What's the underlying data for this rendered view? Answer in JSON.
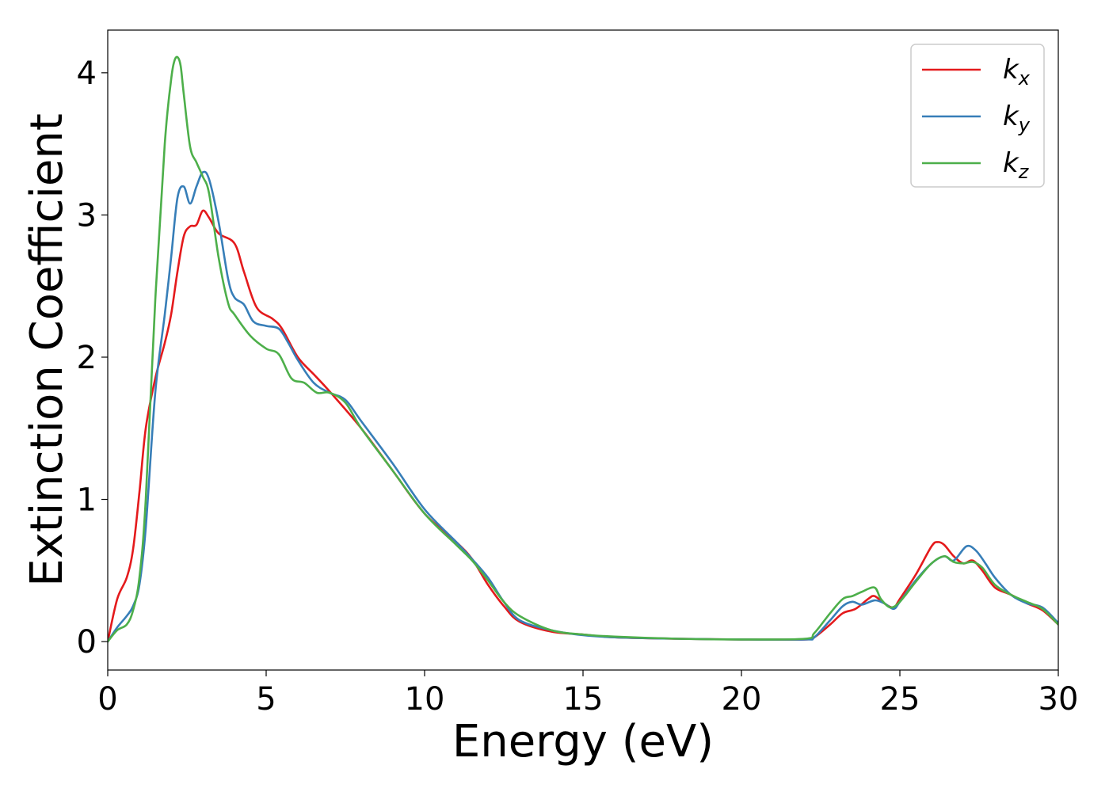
{
  "chart_data": {
    "type": "line",
    "title": "",
    "xlabel": "Energy (eV)",
    "ylabel": "Extinction Coefficient",
    "xlim": [
      0,
      30
    ],
    "ylim": [
      -0.2,
      4.3
    ],
    "xticks": [
      0,
      5,
      10,
      15,
      20,
      25,
      30
    ],
    "yticks": [
      0,
      1,
      2,
      3,
      4
    ],
    "grid": false,
    "legend_position": "top-right",
    "series": [
      {
        "name": "k_x",
        "label_main": "k",
        "label_sub": "x",
        "color": "#e41a1c",
        "x": [
          0,
          0.3,
          0.6,
          0.8,
          1.0,
          1.2,
          1.5,
          1.8,
          2.0,
          2.2,
          2.4,
          2.6,
          2.8,
          3.0,
          3.2,
          3.5,
          4.0,
          4.3,
          4.7,
          5.2,
          5.5,
          6.0,
          6.5,
          7.0,
          8.0,
          9.0,
          10.0,
          11.0,
          11.5,
          12.0,
          12.5,
          13.0,
          14.0,
          15.0,
          16.0,
          18.0,
          20.0,
          22.0,
          22.3,
          22.8,
          23.2,
          23.6,
          24.0,
          24.2,
          24.5,
          24.8,
          25.0,
          25.5,
          26.0,
          26.2,
          26.4,
          26.7,
          27.0,
          27.3,
          27.6,
          28.0,
          28.5,
          29.0,
          29.5,
          30.0
        ],
        "y": [
          0.0,
          0.3,
          0.45,
          0.65,
          1.05,
          1.5,
          1.85,
          2.1,
          2.3,
          2.6,
          2.85,
          2.92,
          2.93,
          3.03,
          2.98,
          2.87,
          2.8,
          2.6,
          2.35,
          2.27,
          2.2,
          2.0,
          1.88,
          1.76,
          1.5,
          1.2,
          0.9,
          0.7,
          0.58,
          0.4,
          0.25,
          0.14,
          0.07,
          0.05,
          0.03,
          0.02,
          0.015,
          0.015,
          0.03,
          0.12,
          0.2,
          0.23,
          0.3,
          0.32,
          0.27,
          0.24,
          0.3,
          0.47,
          0.67,
          0.7,
          0.68,
          0.6,
          0.55,
          0.57,
          0.5,
          0.38,
          0.33,
          0.27,
          0.22,
          0.12
        ]
      },
      {
        "name": "k_y",
        "label_main": "k",
        "label_sub": "y",
        "color": "#377eb8",
        "x": [
          0,
          0.3,
          0.6,
          0.8,
          1.0,
          1.2,
          1.5,
          1.8,
          2.0,
          2.2,
          2.4,
          2.6,
          2.8,
          3.0,
          3.2,
          3.5,
          3.8,
          4.0,
          4.3,
          4.6,
          5.0,
          5.4,
          5.7,
          6.0,
          6.5,
          7.0,
          7.5,
          8.0,
          9.0,
          10.0,
          11.0,
          11.5,
          12.0,
          12.5,
          13.0,
          14.0,
          15.0,
          16.0,
          18.0,
          20.0,
          22.0,
          22.3,
          22.8,
          23.2,
          23.5,
          23.8,
          24.2,
          24.5,
          24.8,
          25.0,
          25.5,
          26.0,
          26.4,
          26.7,
          27.1,
          27.4,
          27.7,
          28.0,
          28.5,
          29.0,
          29.5,
          30.0
        ],
        "y": [
          0.0,
          0.1,
          0.18,
          0.25,
          0.4,
          0.8,
          1.75,
          2.3,
          2.7,
          3.12,
          3.2,
          3.08,
          3.2,
          3.3,
          3.25,
          2.95,
          2.55,
          2.42,
          2.37,
          2.25,
          2.22,
          2.2,
          2.1,
          1.98,
          1.82,
          1.75,
          1.7,
          1.55,
          1.25,
          0.93,
          0.7,
          0.58,
          0.45,
          0.28,
          0.15,
          0.08,
          0.045,
          0.03,
          0.02,
          0.015,
          0.015,
          0.03,
          0.15,
          0.25,
          0.28,
          0.26,
          0.29,
          0.27,
          0.23,
          0.28,
          0.43,
          0.55,
          0.6,
          0.57,
          0.67,
          0.64,
          0.55,
          0.45,
          0.33,
          0.27,
          0.24,
          0.13
        ]
      },
      {
        "name": "k_z",
        "label_main": "k",
        "label_sub": "z",
        "color": "#4daf4a",
        "x": [
          0,
          0.3,
          0.6,
          0.8,
          1.0,
          1.2,
          1.5,
          1.8,
          2.0,
          2.1,
          2.2,
          2.3,
          2.4,
          2.6,
          2.8,
          3.0,
          3.2,
          3.5,
          3.8,
          4.0,
          4.5,
          5.0,
          5.4,
          5.8,
          6.2,
          6.6,
          7.0,
          7.5,
          8.0,
          9.0,
          10.0,
          11.0,
          11.5,
          12.0,
          12.5,
          13.0,
          14.0,
          15.0,
          16.0,
          18.0,
          20.0,
          22.0,
          22.3,
          22.8,
          23.2,
          23.5,
          23.8,
          24.2,
          24.4,
          24.7,
          25.0,
          25.5,
          26.0,
          26.4,
          26.7,
          27.0,
          27.3,
          27.6,
          28.0,
          28.5,
          29.0,
          29.5,
          30.0
        ],
        "y": [
          0.0,
          0.08,
          0.12,
          0.22,
          0.45,
          1.0,
          2.4,
          3.5,
          3.95,
          4.08,
          4.11,
          4.05,
          3.85,
          3.48,
          3.37,
          3.27,
          3.15,
          2.7,
          2.38,
          2.3,
          2.15,
          2.06,
          2.02,
          1.85,
          1.82,
          1.75,
          1.75,
          1.68,
          1.5,
          1.2,
          0.9,
          0.68,
          0.57,
          0.43,
          0.28,
          0.18,
          0.08,
          0.05,
          0.035,
          0.02,
          0.015,
          0.02,
          0.06,
          0.2,
          0.3,
          0.32,
          0.35,
          0.38,
          0.3,
          0.24,
          0.28,
          0.42,
          0.55,
          0.6,
          0.56,
          0.55,
          0.56,
          0.52,
          0.4,
          0.33,
          0.28,
          0.23,
          0.12
        ]
      }
    ]
  }
}
